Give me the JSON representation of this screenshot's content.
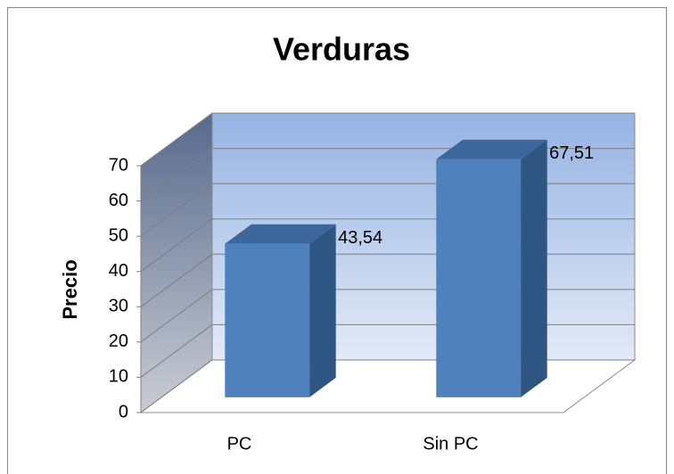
{
  "chart_data": {
    "type": "bar3d",
    "title": "Verduras",
    "y_label": "Precio",
    "categories": [
      "PC",
      "Sin PC"
    ],
    "values": [
      43.54,
      67.51
    ],
    "value_labels": [
      "43,54",
      "67,51"
    ],
    "color": "#4f81bd",
    "ylim": [
      0,
      70
    ],
    "yticks": [
      0,
      10,
      20,
      30,
      40,
      50,
      60,
      70
    ],
    "grid": true
  }
}
